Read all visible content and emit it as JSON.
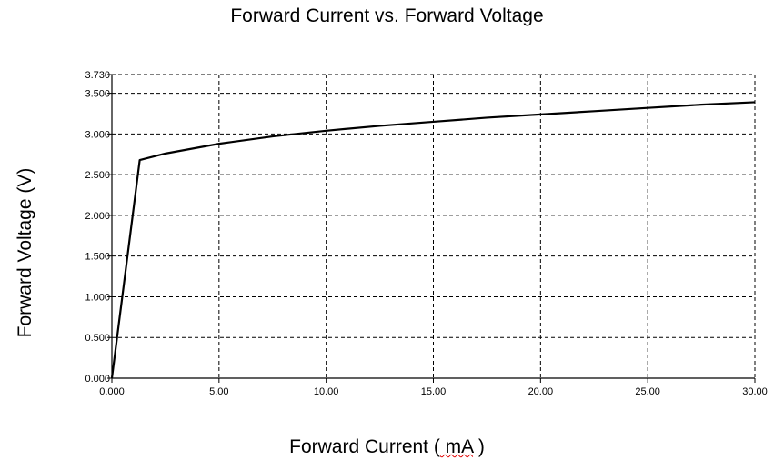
{
  "chart_data": {
    "type": "line",
    "title": "Forward Current vs. Forward Voltage",
    "xlabel": "Forward Current ( mA )",
    "xlabel_parts": {
      "prefix": "Forward Current (",
      "unit": " mA",
      "suffix": " )"
    },
    "ylabel": "Forward Voltage (V)",
    "xlim": [
      0,
      30
    ],
    "ylim": [
      0,
      3.73
    ],
    "grid": true,
    "x_ticks": [
      "0.000",
      "5.00",
      "10.00",
      "15.00",
      "20.00",
      "25.00",
      "30.00"
    ],
    "x_tick_values": [
      0,
      5,
      10,
      15,
      20,
      25,
      30
    ],
    "y_ticks": [
      "0.000",
      "0.500",
      "1.000",
      "1.500",
      "2.000",
      "2.500",
      "3.000",
      "3.500",
      "3.730"
    ],
    "y_tick_values": [
      0,
      0.5,
      1.0,
      1.5,
      2.0,
      2.5,
      3.0,
      3.5,
      3.73
    ],
    "series": [
      {
        "color": "#000000",
        "x": [
          0,
          1.3,
          2.5,
          5,
          7.5,
          10,
          12.5,
          15,
          17.5,
          20,
          22.5,
          25,
          27.5,
          30
        ],
        "y": [
          0.0,
          2.68,
          2.76,
          2.88,
          2.97,
          3.04,
          3.1,
          3.15,
          3.2,
          3.24,
          3.28,
          3.32,
          3.36,
          3.39
        ]
      }
    ]
  }
}
